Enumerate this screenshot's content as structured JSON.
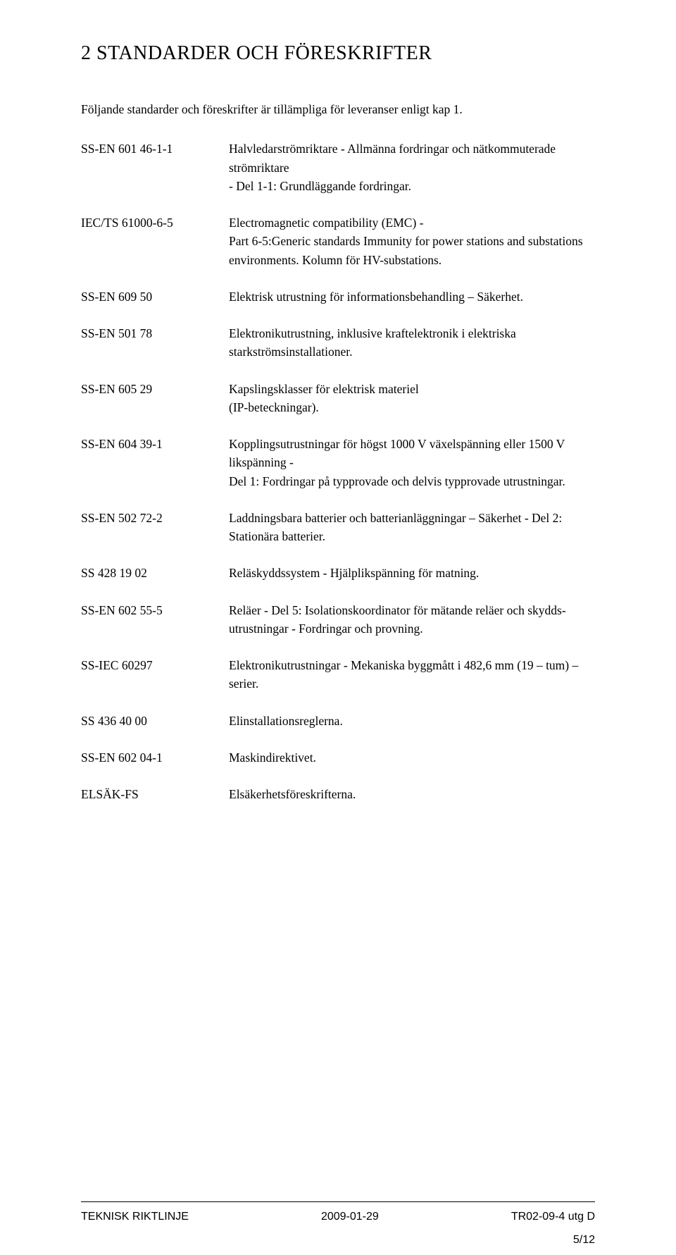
{
  "heading": "2   STANDARDER OCH FÖRESKRIFTER",
  "intro": "Följande standarder och föreskrifter är tillämpliga för leveranser enligt kap 1.",
  "rows": [
    {
      "code": "SS-EN 601 46-1-1",
      "desc": "Halvledarströmriktare - Allmänna fordringar och nätkommuterade strömriktare\n- Del 1-1: Grundläggande fordringar."
    },
    {
      "code": "IEC/TS 61000-6-5",
      "desc": "Electromagnetic compatibility (EMC) -\nPart 6-5:Generic standards Immunity for power stations and substations environments. Kolumn för HV-substations."
    },
    {
      "code": "SS-EN 609 50",
      "desc": "Elektrisk utrustning för informationsbehandling – Säkerhet."
    },
    {
      "code": "SS-EN 501 78",
      "desc": "Elektronikutrustning, inklusive kraftelektronik i elektriska starkströmsinstallationer."
    },
    {
      "code": "SS-EN 605 29",
      "desc": "Kapslingsklasser för elektrisk materiel\n(IP-beteckningar)."
    },
    {
      "code": "SS-EN 604 39-1",
      "desc": "Kopplingsutrustningar för högst 1000 V växelspänning eller 1500 V likspänning -\nDel 1: Fordringar på typprovade och delvis typprovade utrustningar."
    },
    {
      "code": "SS-EN 502 72-2",
      "desc": "Laddningsbara batterier och batterianläggningar – Säkerhet - Del 2: Stationära batterier."
    },
    {
      "code": "SS 428 19 02",
      "desc": "Reläskyddssystem - Hjälplikspänning för matning."
    },
    {
      "code": "SS-EN 602 55-5",
      "desc": "Reläer - Del 5: Isolationskoordinator för mätande reläer och skydds- utrustningar - Fordringar och provning."
    },
    {
      "code": "SS-IEC 60297",
      "desc": "Elektronikutrustningar - Mekaniska byggmått i 482,6 mm (19 – tum) – serier."
    },
    {
      "code": "SS 436 40 00",
      "desc": "Elinstallationsreglerna."
    },
    {
      "code": "SS-EN 602 04-1",
      "desc": "Maskindirektivet."
    },
    {
      "code": "ELSÄK-FS",
      "desc": "Elsäkerhetsföreskrifterna."
    }
  ],
  "footer": {
    "left": "TEKNISK RIKTLINJE",
    "center": "2009-01-29",
    "right": "TR02-09-4 utg D"
  },
  "pagenum": "5/12"
}
